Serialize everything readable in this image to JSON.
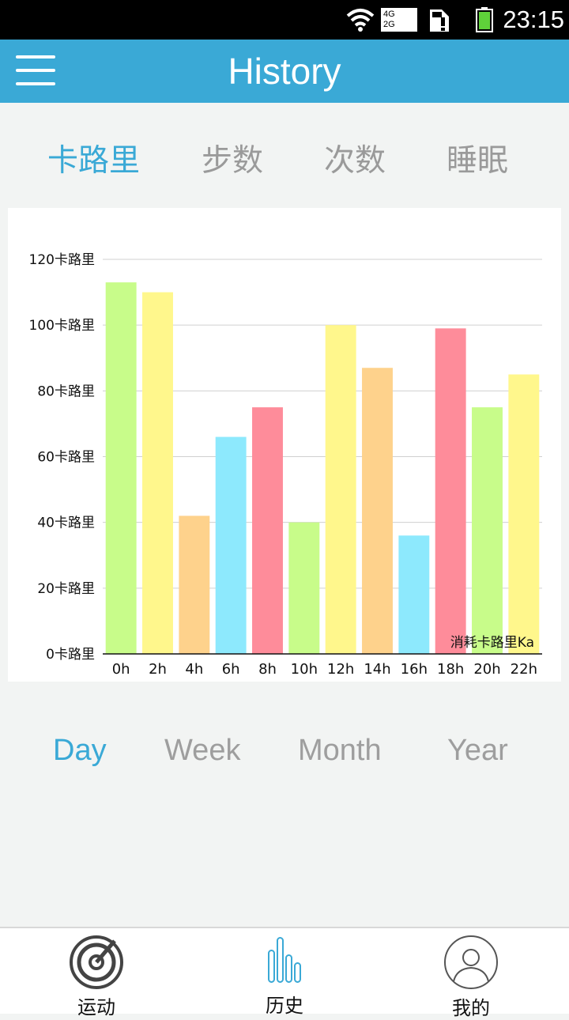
{
  "status_bar": {
    "time": "23:15",
    "net_top": "4G",
    "net_bottom": "2G",
    "icons": [
      "wifi-icon",
      "signal-icon",
      "sim-alert-icon",
      "battery-icon"
    ]
  },
  "header": {
    "title": "History",
    "menu_icon": "hamburger-menu-icon"
  },
  "metric_tabs": [
    {
      "label": "卡路里",
      "active": true
    },
    {
      "label": "步数",
      "active": false
    },
    {
      "label": "次数",
      "active": false
    },
    {
      "label": "睡眠",
      "active": false
    }
  ],
  "chart_data": {
    "type": "bar",
    "categories": [
      "0h",
      "2h",
      "4h",
      "6h",
      "8h",
      "10h",
      "12h",
      "14h",
      "16h",
      "18h",
      "20h",
      "22h"
    ],
    "values": [
      113,
      110,
      42,
      66,
      75,
      40,
      100,
      87,
      36,
      99,
      75,
      85
    ],
    "colors": [
      "#c8fc8a",
      "#fff78c",
      "#fed28c",
      "#8de9fd",
      "#fe8c9a",
      "#c8fc8a",
      "#fff78c",
      "#fed28c",
      "#8de9fd",
      "#fe8c9a",
      "#c8fc8a",
      "#fff78c"
    ],
    "y_ticks": [
      "0卡路里",
      "20卡路里",
      "40卡路里",
      "60卡路里",
      "80卡路里",
      "100卡路里",
      "120卡路里"
    ],
    "y_tick_values": [
      0,
      20,
      40,
      60,
      80,
      100,
      120
    ],
    "ylim": [
      0,
      120
    ],
    "grid": true,
    "legend_label": "消耗卡路里Ka",
    "legend_position": "bottom-right"
  },
  "period_tabs": [
    {
      "label": "Day",
      "active": true
    },
    {
      "label": "Week",
      "active": false
    },
    {
      "label": "Month",
      "active": false
    },
    {
      "label": "Year",
      "active": false
    }
  ],
  "bottom_nav": [
    {
      "label": "运动",
      "icon": "radar-icon"
    },
    {
      "label": "历史",
      "icon": "history-bars-icon",
      "active": true
    },
    {
      "label": "我的",
      "icon": "user-avatar-icon"
    }
  ],
  "colors": {
    "accent": "#3aa9d6",
    "inactive": "#9e9e9e",
    "background": "#f2f4f3"
  }
}
